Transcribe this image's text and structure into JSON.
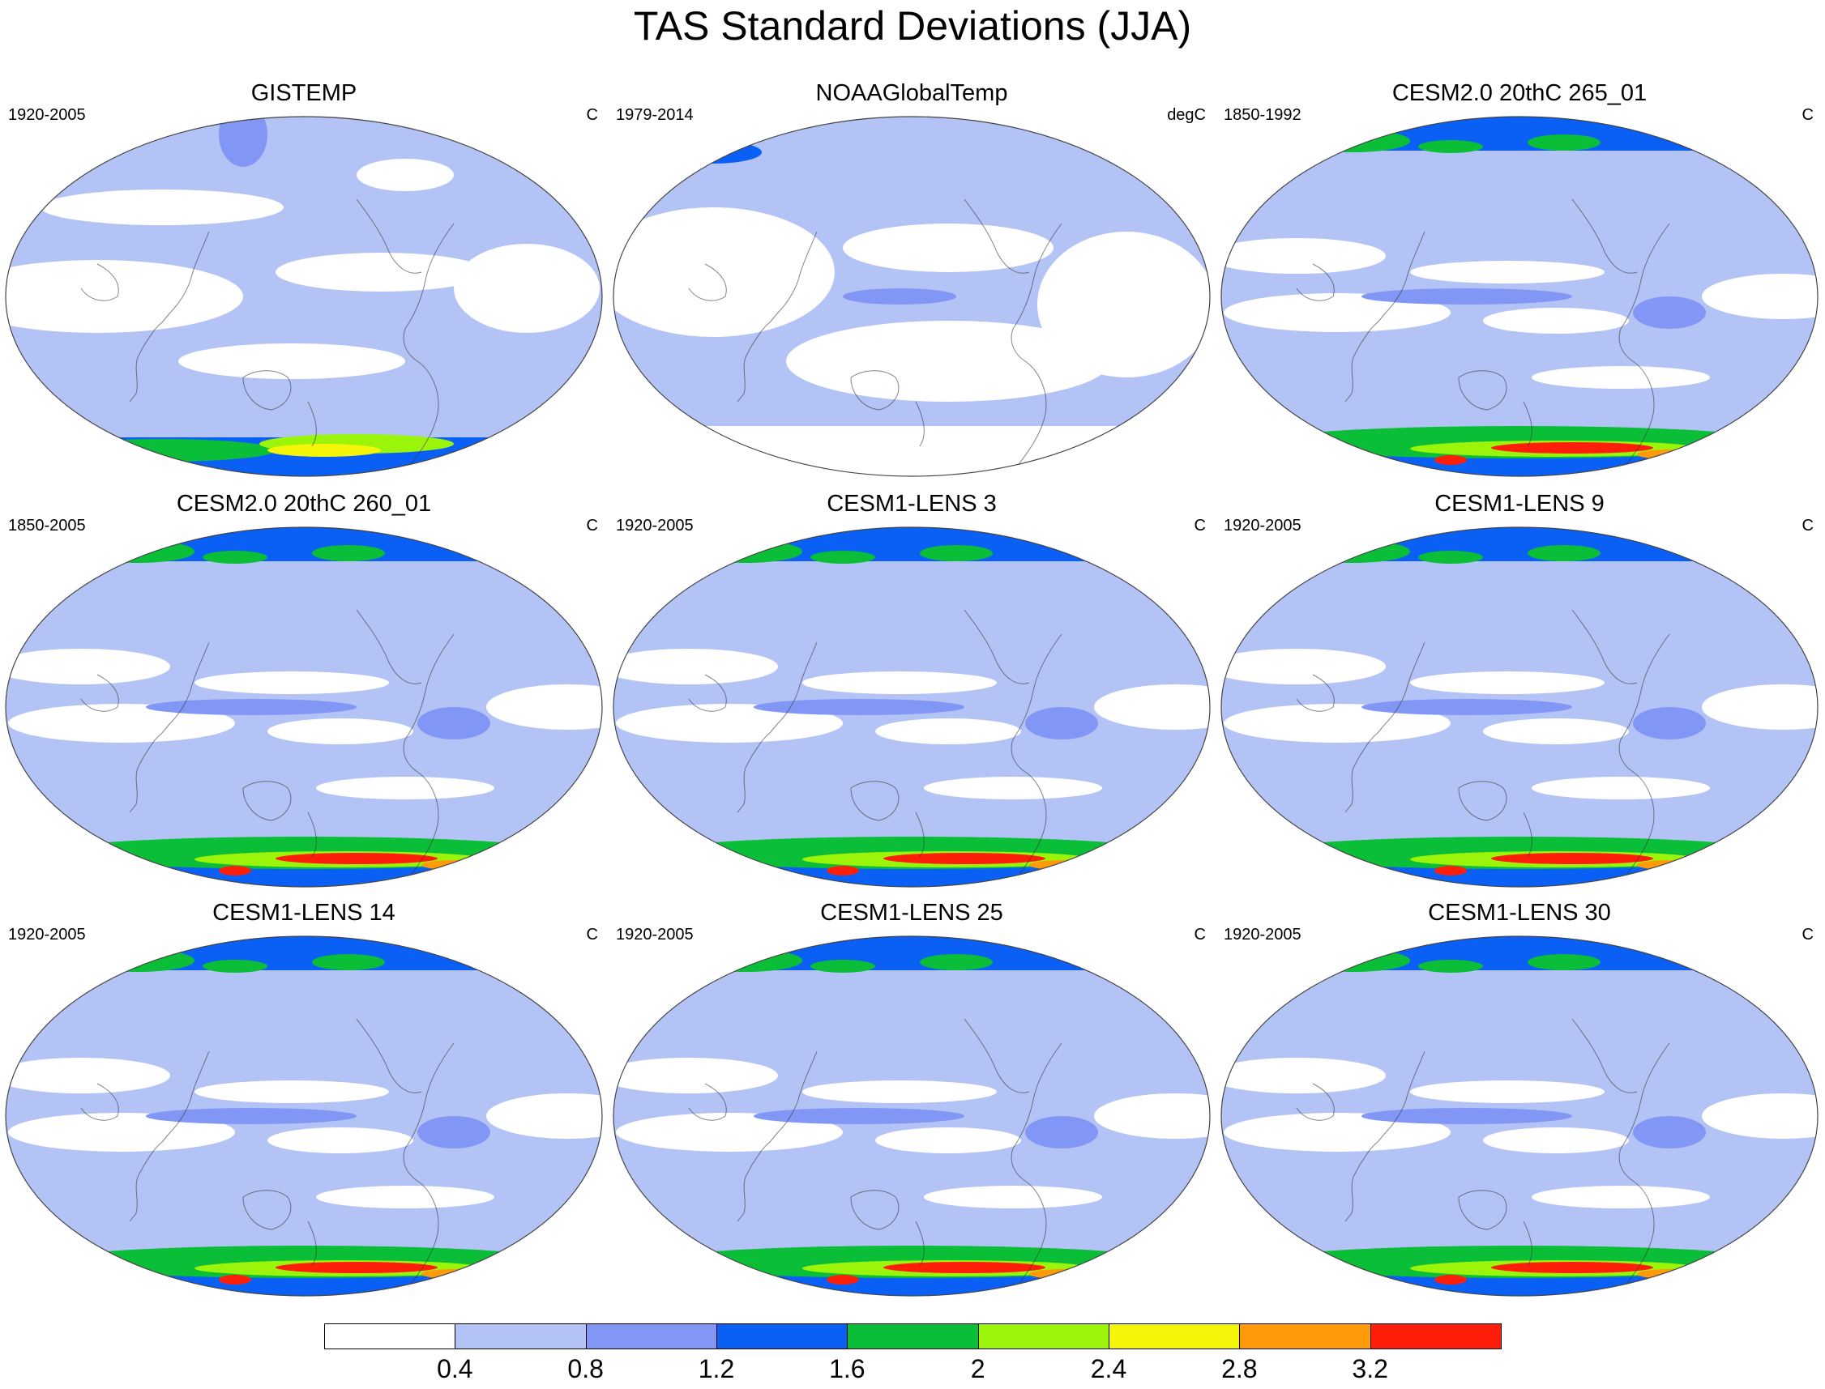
{
  "title": "TAS Standard Deviations (JJA)",
  "panels": [
    {
      "id": "gistemp",
      "title": "GISTEMP",
      "period": "1920-2005",
      "units": "C",
      "pattern": "obs-gistemp"
    },
    {
      "id": "noaa",
      "title": "NOAAGlobalTemp",
      "period": "1979-2014",
      "units": "degC",
      "pattern": "obs-noaa"
    },
    {
      "id": "cesm2-265",
      "title": "CESM2.0 20thC 265_01",
      "period": "1850-1992",
      "units": "C",
      "pattern": "model"
    },
    {
      "id": "cesm2-260",
      "title": "CESM2.0 20thC 260_01",
      "period": "1850-2005",
      "units": "C",
      "pattern": "model"
    },
    {
      "id": "lens3",
      "title": "CESM1-LENS 3",
      "period": "1920-2005",
      "units": "C",
      "pattern": "model"
    },
    {
      "id": "lens9",
      "title": "CESM1-LENS 9",
      "period": "1920-2005",
      "units": "C",
      "pattern": "model"
    },
    {
      "id": "lens14",
      "title": "CESM1-LENS 14",
      "period": "1920-2005",
      "units": "C",
      "pattern": "model"
    },
    {
      "id": "lens25",
      "title": "CESM1-LENS 25",
      "period": "1920-2005",
      "units": "C",
      "pattern": "model"
    },
    {
      "id": "lens30",
      "title": "CESM1-LENS 30",
      "period": "1920-2005",
      "units": "C",
      "pattern": "model"
    }
  ],
  "colorbar": {
    "colors": [
      "#ffffff",
      "#b4c3f5",
      "#8296f5",
      "#0a5ff5",
      "#0abe37",
      "#9bf50a",
      "#f5f50a",
      "#ff9b0a",
      "#ff1e0a"
    ],
    "labels": [
      "0.4",
      "0.8",
      "1.2",
      "1.6",
      "2",
      "2.4",
      "2.8",
      "3.2"
    ]
  }
}
